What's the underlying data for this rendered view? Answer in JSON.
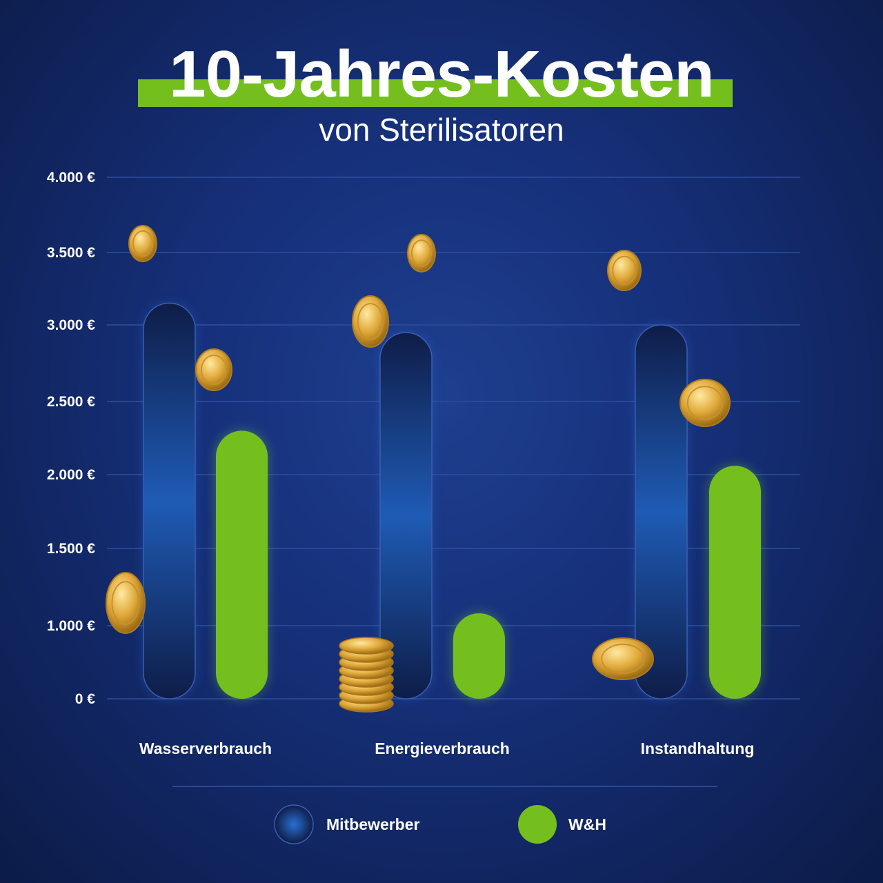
{
  "chart_data": {
    "type": "bar",
    "title": "10-Jahres-Kosten",
    "subtitle": "von Sterilisatoren",
    "categories": [
      "Wasserverbrauch",
      "Energieverbrauch",
      "Instandhaltung"
    ],
    "series": [
      {
        "name": "Mitbewerber",
        "values": [
          3150,
          2950,
          3000
        ],
        "color": "#1a3f8a"
      },
      {
        "name": "W&H",
        "values": [
          2300,
          1080,
          2060
        ],
        "color": "#74bf1e"
      }
    ],
    "yticks": [
      "0 €",
      "1.000 €",
      "1.500 €",
      "2.000 €",
      "2.500 €",
      "3.000 €",
      "3.500 €",
      "4.000 €"
    ],
    "ytick_values": [
      0,
      1000,
      1500,
      2000,
      2500,
      3000,
      3500,
      4000
    ],
    "ylim": [
      0,
      4000
    ],
    "grid": true,
    "legend_position": "bottom",
    "accent": "#74bf1e",
    "background": "#16307a"
  }
}
